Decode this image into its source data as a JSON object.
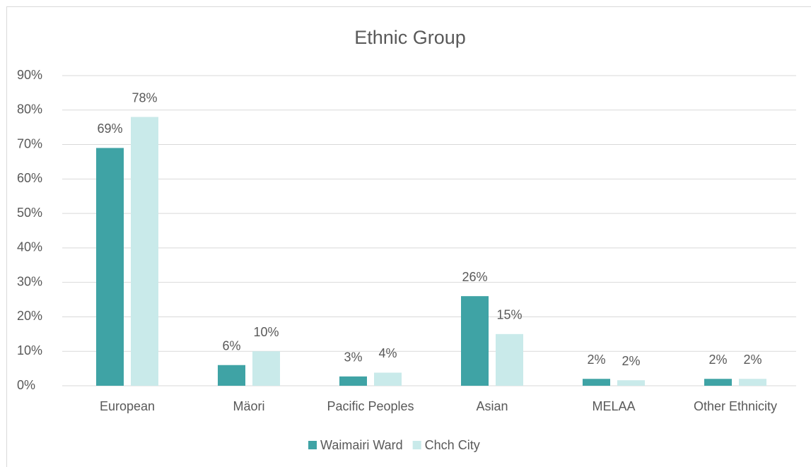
{
  "chart_data": {
    "type": "bar",
    "title": "Ethnic Group",
    "categories": [
      "European",
      "Mäori",
      "Pacific Peoples",
      "Asian",
      "MELAA",
      "Other Ethnicity"
    ],
    "series": [
      {
        "name": "Waimairi Ward",
        "color": "#3fa3a5",
        "values": [
          69,
          6,
          2.7,
          26,
          2,
          2
        ],
        "value_labels": [
          "69%",
          "6%",
          "3%",
          "26%",
          "2%",
          "2%"
        ]
      },
      {
        "name": "Chch City",
        "color": "#c9eaea",
        "values": [
          78,
          10,
          3.8,
          15,
          1.6,
          2
        ],
        "value_labels": [
          "78%",
          "10%",
          "4%",
          "15%",
          "2%",
          "2%"
        ]
      }
    ],
    "ylim": [
      0,
      90
    ],
    "yticks": [
      {
        "value": 0,
        "label": "0%"
      },
      {
        "value": 10,
        "label": "10%"
      },
      {
        "value": 20,
        "label": "20%"
      },
      {
        "value": 30,
        "label": "30%"
      },
      {
        "value": 40,
        "label": "40%"
      },
      {
        "value": 50,
        "label": "50%"
      },
      {
        "value": 60,
        "label": "60%"
      },
      {
        "value": 70,
        "label": "70%"
      },
      {
        "value": 80,
        "label": "80%"
      },
      {
        "value": 90,
        "label": "90%"
      }
    ],
    "grid": true,
    "legend": "bottom"
  }
}
